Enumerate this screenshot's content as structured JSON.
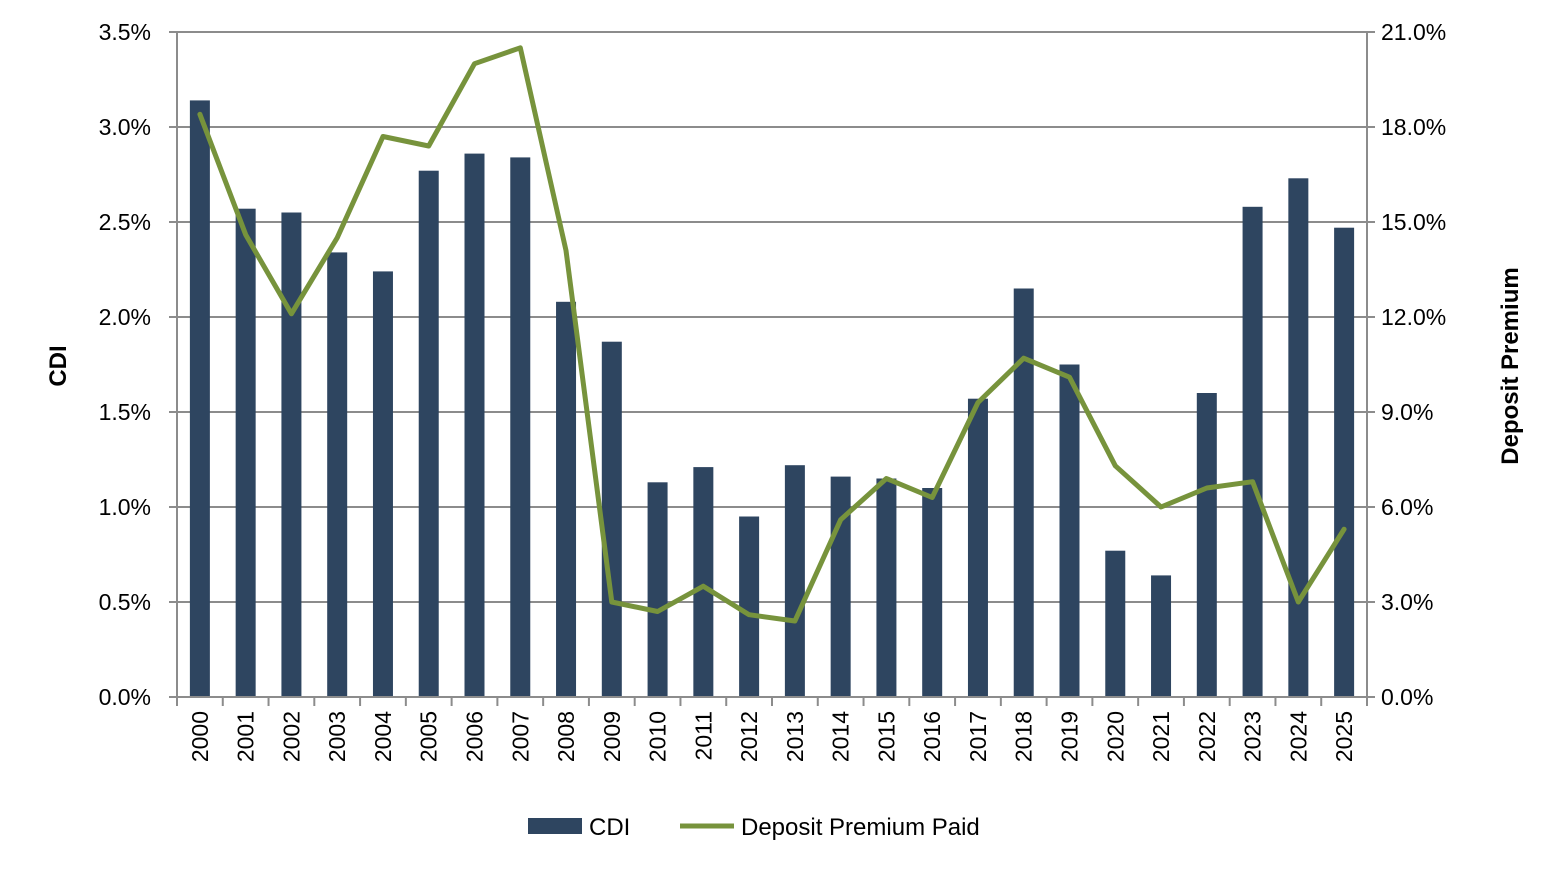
{
  "chart_data": {
    "type": "bar+line",
    "categories": [
      "2000",
      "2001",
      "2002",
      "2003",
      "2004",
      "2005",
      "2006",
      "2007",
      "2008",
      "2009",
      "2010",
      "2011",
      "2012",
      "2013",
      "2014",
      "2015",
      "2016",
      "2017",
      "2018",
      "2019",
      "2020",
      "2021",
      "2022",
      "2023",
      "2024",
      "2025"
    ],
    "series": [
      {
        "name": "CDI",
        "type": "bar",
        "axis": "left",
        "color": "#2E4560",
        "values": [
          3.14,
          2.57,
          2.55,
          2.34,
          2.24,
          2.77,
          2.86,
          2.84,
          2.08,
          1.87,
          1.13,
          1.21,
          0.95,
          1.22,
          1.16,
          1.15,
          1.1,
          1.57,
          2.15,
          1.75,
          0.77,
          0.64,
          1.6,
          2.58,
          2.73,
          2.47
        ]
      },
      {
        "name": "Deposit Premium Paid",
        "type": "line",
        "axis": "right",
        "color": "#77933C",
        "values": [
          18.4,
          14.6,
          12.1,
          14.5,
          17.7,
          17.4,
          20.0,
          20.5,
          14.1,
          3.0,
          2.7,
          3.5,
          2.6,
          2.4,
          5.6,
          6.9,
          6.3,
          9.3,
          10.7,
          10.1,
          7.3,
          6.0,
          6.6,
          6.8,
          3.0,
          5.3
        ]
      }
    ],
    "y_left": {
      "label": "CDI",
      "min": 0,
      "max": 3.5,
      "step": 0.5,
      "ticks": [
        "0.0%",
        "0.5%",
        "1.0%",
        "1.5%",
        "2.0%",
        "2.5%",
        "3.0%",
        "3.5%"
      ]
    },
    "y_right": {
      "label": "Deposit Premium",
      "min": 0,
      "max": 21,
      "step": 3,
      "ticks": [
        "0.0%",
        "3.0%",
        "6.0%",
        "9.0%",
        "12.0%",
        "15.0%",
        "18.0%",
        "21.0%"
      ]
    },
    "grid": true,
    "legend": {
      "position": "bottom",
      "entries": [
        "CDI",
        "Deposit Premium Paid"
      ]
    }
  }
}
